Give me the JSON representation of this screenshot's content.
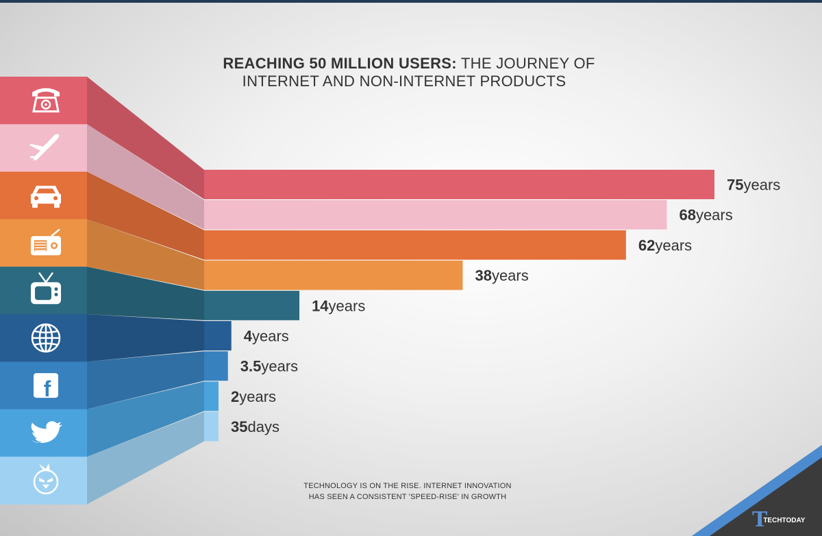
{
  "title": {
    "bold": "REACHING 50 MILLION USERS:",
    "rest1": " THE JOURNEY OF",
    "line2": "INTERNET AND NON-INTERNET PRODUCTS"
  },
  "caption": {
    "line1": "TECHNOLOGY IS ON THE RISE. INTERNET INNOVATION",
    "line2": "HAS SEEN A CONSISTENT 'SPEED-RISE' IN GROWTH"
  },
  "logo": {
    "mark": "T",
    "text": "TECHTODAY"
  },
  "chart_data": {
    "type": "bar",
    "title": "REACHING 50 MILLION USERS: THE JOURNEY OF INTERNET AND NON-INTERNET PRODUCTS",
    "orientation": "horizontal",
    "unit_of_values": "years",
    "categories": [
      "Telephone",
      "Airplane",
      "Car",
      "Radio",
      "Television",
      "Internet",
      "Facebook",
      "Twitter",
      "Angry Birds"
    ],
    "values": [
      75,
      68,
      62,
      38,
      14,
      4,
      3.5,
      2,
      0.096
    ],
    "labels": [
      {
        "num": "75",
        "unit": "years"
      },
      {
        "num": "68",
        "unit": "years"
      },
      {
        "num": "62",
        "unit": "years"
      },
      {
        "num": "38",
        "unit": "years"
      },
      {
        "num": "14",
        "unit": "years"
      },
      {
        "num": "4",
        "unit": "years"
      },
      {
        "num": "3.5",
        "unit": "years"
      },
      {
        "num": "2",
        "unit": "years"
      },
      {
        "num": "35",
        "unit": "days"
      }
    ],
    "icons": [
      "telephone-icon",
      "airplane-icon",
      "car-icon",
      "radio-icon",
      "tv-icon",
      "globe-icon",
      "facebook-icon",
      "twitter-icon",
      "angry-bird-icon"
    ],
    "colors": [
      "#e0606e",
      "#f2bccb",
      "#e4703a",
      "#ec9346",
      "#2b6a80",
      "#265d92",
      "#3881bf",
      "#4ba3dd",
      "#9fd2f2"
    ],
    "xlim": [
      0,
      75
    ]
  }
}
